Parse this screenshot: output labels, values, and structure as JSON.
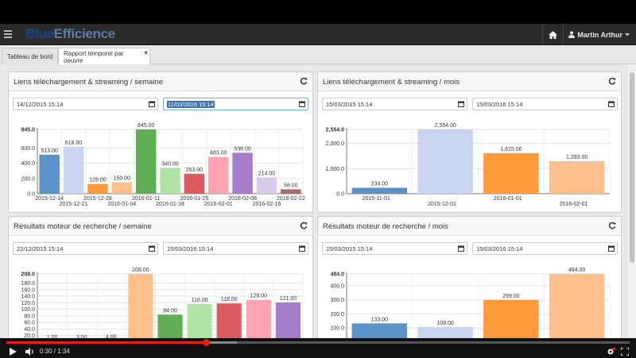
{
  "app": {
    "brand_part1": "Blue",
    "brand_part2": "Efficience",
    "user_name": "Martin Arthur"
  },
  "tabs": [
    {
      "label": "Tableau de bord"
    },
    {
      "label": "Rapport temporel par oeuvre",
      "close": "×"
    }
  ],
  "panels": {
    "p1": {
      "title": "Liens téléchargement & streaming / semaine",
      "date_from": "14/12/2015 15:14",
      "date_to": "11/03/2016 15:14"
    },
    "p2": {
      "title": "Liens téléchargement & streaming / mois",
      "date_from": "15/03/2015 15:14",
      "date_to": "15/03/2016 15:14"
    },
    "p3": {
      "title": "Résultats moteur de recherche / semaine",
      "date_from": "22/12/2015 15:14",
      "date_to": "15/03/2016 15:14"
    },
    "p4": {
      "title": "Résultats moteur de recherche / mois",
      "date_from": "15/03/2015 15:14",
      "date_to": "15/03/2016 15:14"
    }
  },
  "colors": {
    "blue": "#5b93c9",
    "lightblue": "#c9d4f0",
    "orange": "#ff9a3c",
    "peach": "#fdc08a",
    "green": "#5fae54",
    "lightgreen": "#aee3a3",
    "red": "#dd5c63",
    "pink": "#fda3b4",
    "purple": "#a57dc9",
    "lavender": "#d7cbe8",
    "brown": "#a56c6c"
  },
  "chart_data": [
    {
      "type": "bar",
      "title": "Liens téléchargement & streaming / semaine",
      "ylim": [
        0,
        845
      ],
      "yticks": [
        "0.0",
        "200.0",
        "400.0",
        "600.0",
        "845.0"
      ],
      "categories": [
        "2015-12-14",
        "2015-12-21",
        "2015-12-28",
        "2016-01-04",
        "2016-01-11",
        "2016-01-18",
        "2016-01-25",
        "2016-02-01",
        "2016-02-08",
        "2016-02-15",
        "2016-02-22",
        ""
      ],
      "values": [
        513,
        618,
        128,
        150,
        845,
        340,
        263,
        483,
        538,
        214,
        58
      ],
      "labels": [
        "513.00",
        "618.00",
        "128.00",
        "150.00",
        "845.00",
        "340.00",
        "263.00",
        "483.00",
        "538.00",
        "214.00",
        "58.00"
      ],
      "bar_colors": [
        "blue",
        "lightblue",
        "orange",
        "peach",
        "green",
        "lightgreen",
        "red",
        "pink",
        "purple",
        "lavender",
        "brown"
      ]
    },
    {
      "type": "bar",
      "title": "Liens téléchargement & streaming / mois",
      "ylim": [
        0,
        2554
      ],
      "yticks": [
        "0.0",
        "1,000.0",
        "2,000.0",
        "2,554.0"
      ],
      "categories": [
        "2015-11-01",
        "2015-12-01",
        "2016-01-01",
        "2016-02-01"
      ],
      "values": [
        234,
        2554,
        1615,
        1293
      ],
      "labels": [
        "234.00",
        "2,554.00",
        "1,615.00",
        "1,293.00"
      ],
      "bar_colors": [
        "blue",
        "lightblue",
        "orange",
        "peach"
      ]
    },
    {
      "type": "bar",
      "title": "Résultats moteur de recherche / semaine",
      "ylim": [
        0,
        208
      ],
      "yticks": [
        "0.0",
        "20.0",
        "40.0",
        "60.0",
        "80.0",
        "100.0",
        "120.0",
        "140.0",
        "160.0",
        "180.0",
        "208.0"
      ],
      "values": [
        1,
        3,
        4,
        208,
        84,
        116,
        118,
        129,
        121
      ],
      "labels": [
        "1.00",
        "3.00",
        "4.00",
        "208.00",
        "84.00",
        "116.00",
        "118.00",
        "129.00",
        "121.00"
      ],
      "bar_colors": [
        "blue",
        "lightblue",
        "orange",
        "peach",
        "green",
        "lightgreen",
        "red",
        "pink",
        "purple"
      ]
    },
    {
      "type": "bar",
      "title": "Résultats moteur de recherche / mois",
      "ylim": [
        0,
        484
      ],
      "yticks": [
        "0.0",
        "100.0",
        "200.0",
        "300.0",
        "400.0",
        "484.0"
      ],
      "values": [
        133,
        108,
        299,
        484
      ],
      "labels": [
        "133.00",
        "108.00",
        "299.00",
        "484.00"
      ],
      "bar_colors": [
        "blue",
        "lightblue",
        "orange",
        "peach"
      ]
    }
  ],
  "video": {
    "time": "0:30 / 1:34",
    "played_fraction": 0.32,
    "loaded_fraction": 0.37
  }
}
